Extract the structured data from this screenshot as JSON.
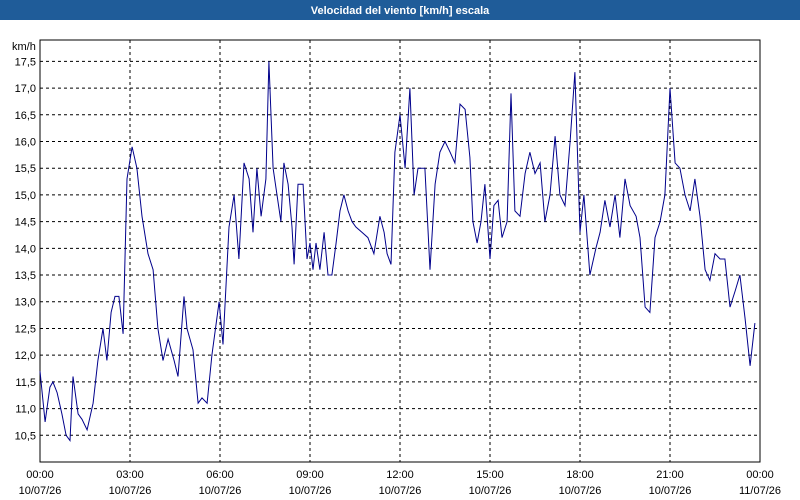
{
  "chart_data": {
    "type": "line",
    "title": "Velocidad del viento [km/h] escala",
    "y_label": "km/h",
    "x": [
      0,
      0.17,
      0.33,
      0.43,
      0.57,
      0.73,
      0.87,
      1.0,
      1.1,
      1.27,
      1.4,
      1.57,
      1.77,
      1.93,
      2.1,
      2.23,
      2.37,
      2.5,
      2.63,
      2.77,
      2.9,
      3.07,
      3.23,
      3.4,
      3.6,
      3.77,
      3.93,
      4.1,
      4.27,
      4.47,
      4.6,
      4.8,
      4.9,
      5.1,
      5.27,
      5.4,
      5.57,
      5.73,
      5.97,
      6.1,
      6.3,
      6.47,
      6.63,
      6.8,
      6.97,
      7.1,
      7.23,
      7.37,
      7.53,
      7.63,
      7.77,
      7.9,
      8.03,
      8.13,
      8.27,
      8.4,
      8.47,
      8.6,
      8.77,
      8.9,
      9.0,
      9.1,
      9.2,
      9.33,
      9.47,
      9.6,
      9.73,
      9.87,
      10.0,
      10.13,
      10.27,
      10.4,
      10.53,
      10.73,
      10.93,
      11.13,
      11.33,
      11.47,
      11.57,
      11.7,
      11.83,
      12.0,
      12.17,
      12.33,
      12.47,
      12.6,
      12.83,
      13.0,
      13.17,
      13.33,
      13.5,
      13.67,
      13.83,
      14.0,
      14.17,
      14.33,
      14.43,
      14.57,
      14.7,
      14.83,
      15.0,
      15.13,
      15.27,
      15.4,
      15.57,
      15.7,
      15.83,
      16.0,
      16.17,
      16.33,
      16.5,
      16.67,
      16.83,
      17.0,
      17.17,
      17.33,
      17.5,
      17.67,
      17.83,
      18.0,
      18.13,
      18.33,
      18.53,
      18.67,
      18.83,
      19.0,
      19.17,
      19.33,
      19.5,
      19.67,
      19.87,
      20.0,
      20.17,
      20.33,
      20.5,
      20.67,
      20.83,
      21.0,
      21.17,
      21.33,
      21.5,
      21.67,
      21.83,
      22.0,
      22.17,
      22.33,
      22.5,
      22.67,
      22.83,
      23.0,
      23.17,
      23.33,
      23.5,
      23.67,
      23.83
    ],
    "series": [
      {
        "name": "Velocidad del viento",
        "color": "#00008b",
        "values": [
          11.7,
          10.75,
          11.4,
          11.5,
          11.3,
          10.9,
          10.5,
          10.4,
          11.6,
          10.9,
          10.8,
          10.6,
          11.1,
          11.9,
          12.5,
          11.9,
          12.8,
          13.1,
          13.1,
          12.4,
          15.3,
          15.9,
          15.5,
          14.6,
          13.9,
          13.6,
          12.5,
          11.9,
          12.3,
          11.9,
          11.6,
          13.1,
          12.5,
          12.1,
          11.1,
          11.2,
          11.1,
          12.0,
          13.0,
          12.2,
          14.4,
          15.0,
          13.8,
          15.6,
          15.3,
          14.3,
          15.5,
          14.6,
          15.3,
          17.5,
          15.5,
          15.0,
          14.5,
          15.6,
          15.2,
          14.4,
          13.7,
          15.2,
          15.2,
          13.8,
          14.1,
          13.6,
          14.1,
          13.6,
          14.3,
          13.5,
          13.5,
          14.1,
          14.7,
          15.0,
          14.7,
          14.5,
          14.4,
          14.3,
          14.2,
          13.9,
          14.6,
          14.3,
          13.9,
          13.7,
          15.8,
          16.5,
          15.5,
          17.0,
          15.0,
          15.5,
          15.5,
          13.6,
          15.2,
          15.8,
          16.0,
          15.8,
          15.6,
          16.7,
          16.6,
          15.7,
          14.5,
          14.1,
          14.5,
          15.2,
          13.8,
          14.8,
          14.9,
          14.2,
          14.5,
          16.9,
          14.7,
          14.6,
          15.4,
          15.8,
          15.4,
          15.6,
          14.5,
          15.0,
          16.1,
          15.0,
          14.8,
          16.0,
          17.3,
          14.3,
          15.0,
          13.5,
          14.0,
          14.3,
          14.9,
          14.4,
          15.0,
          14.2,
          15.3,
          14.8,
          14.6,
          14.2,
          12.9,
          12.8,
          14.2,
          14.5,
          15.0,
          17.0,
          15.6,
          15.5,
          15.0,
          14.7,
          15.3,
          14.6,
          13.6,
          13.4,
          13.9,
          13.8,
          13.8,
          12.9,
          13.2,
          13.5,
          12.7,
          11.8,
          12.6
        ]
      }
    ],
    "xlim": [
      0,
      24
    ],
    "xticks": [
      {
        "value": 0,
        "label": "00:00 10/07/26"
      },
      {
        "value": 3,
        "label": "03:00 10/07/26"
      },
      {
        "value": 6,
        "label": "06:00 10/07/26"
      },
      {
        "value": 9,
        "label": "09:00 10/07/26"
      },
      {
        "value": 12,
        "label": "12:00 10/07/26"
      },
      {
        "value": 15,
        "label": "15:00 10/07/26"
      },
      {
        "value": 18,
        "label": "18:00 10/07/26"
      },
      {
        "value": 21,
        "label": "21:00 10/07/26"
      },
      {
        "value": 24,
        "label": "00:00 11/07/26"
      }
    ],
    "ylim": [
      10.0,
      17.9
    ],
    "yticks": [
      {
        "value": 10.5,
        "label": "10,5"
      },
      {
        "value": 11,
        "label": "11,0"
      },
      {
        "value": 11.5,
        "label": "11,5"
      },
      {
        "value": 12,
        "label": "12,0"
      },
      {
        "value": 12.5,
        "label": "12,5"
      },
      {
        "value": 13,
        "label": "13,0"
      },
      {
        "value": 13.5,
        "label": "13,5"
      },
      {
        "value": 14,
        "label": "14,0"
      },
      {
        "value": 14.5,
        "label": "14,5"
      },
      {
        "value": 15,
        "label": "15,0"
      },
      {
        "value": 15.5,
        "label": "15,5"
      },
      {
        "value": 16,
        "label": "16,0"
      },
      {
        "value": 16.5,
        "label": "16,5"
      },
      {
        "value": 17,
        "label": "17,0"
      },
      {
        "value": 17.5,
        "label": "17,5"
      }
    ],
    "grid": true
  }
}
